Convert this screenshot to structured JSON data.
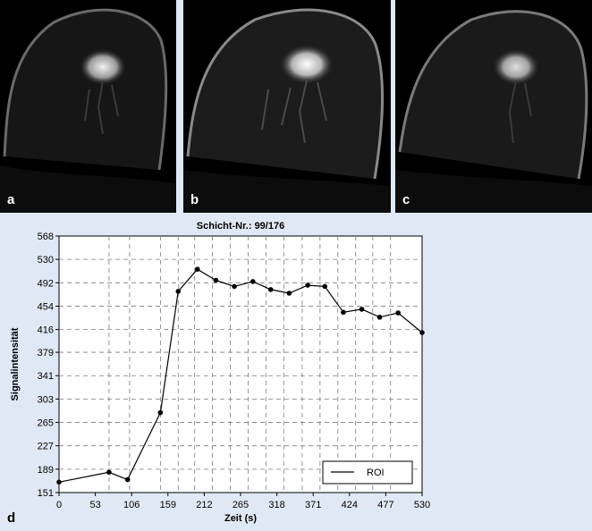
{
  "panels": [
    {
      "label": "a"
    },
    {
      "label": "b"
    },
    {
      "label": "c"
    }
  ],
  "chart_panel_label": "d",
  "chart_data": {
    "type": "line",
    "title": "Schicht-Nr.: 99/176",
    "xlabel": "Zeit (s)",
    "ylabel": "Signalintensität",
    "xlim": [
      0,
      530
    ],
    "ylim": [
      151,
      568
    ],
    "x_ticks": [
      0,
      53,
      106,
      159,
      212,
      265,
      318,
      371,
      424,
      477,
      530
    ],
    "y_ticks": [
      151,
      189,
      227,
      265,
      303,
      341,
      379,
      416,
      454,
      492,
      530,
      568
    ],
    "x_grid": [
      0,
      73,
      103,
      148,
      174,
      198,
      224,
      250,
      276,
      302,
      328,
      355,
      381,
      407,
      433,
      458,
      484,
      530
    ],
    "grid": true,
    "legend_position": "bottom-right",
    "series": [
      {
        "name": "ROI",
        "color": "#000000",
        "x": [
          0,
          73,
          100,
          148,
          174,
          202,
          229,
          256,
          283,
          309,
          336,
          363,
          388,
          415,
          442,
          468,
          495,
          530
        ],
        "y": [
          168,
          184,
          172,
          281,
          478,
          514,
          496,
          486,
          494,
          481,
          475,
          488,
          486,
          444,
          449,
          436,
          443,
          411
        ]
      }
    ]
  }
}
